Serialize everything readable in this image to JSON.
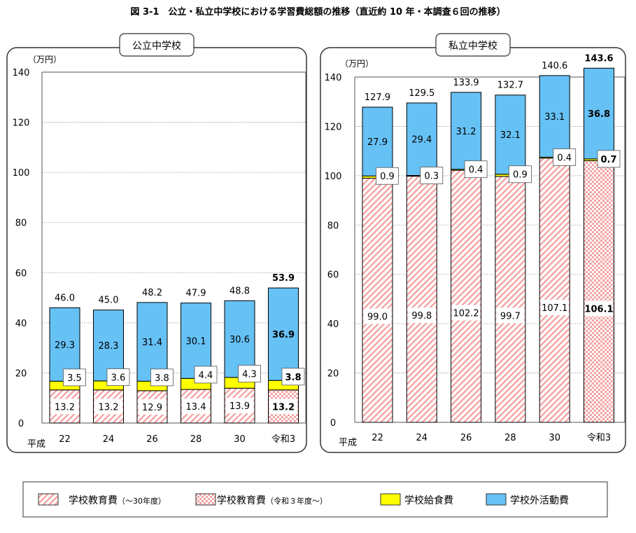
{
  "title": "図 3-1　公立・私立中学校における学習費総額の推移（直近約 10 年・本調査６回の推移）",
  "colors": {
    "school_edu": "#f4a3a3",
    "lunch": "#ffff00",
    "outside": "#66c1f5",
    "panel_border": "#333333",
    "grid": "#999999"
  },
  "legend": {
    "items": [
      {
        "label": "学校教育費",
        "suffix": "（～30年度）",
        "pattern": "diag"
      },
      {
        "label": "学校教育費",
        "suffix": "（令和３年度～）",
        "pattern": "check"
      },
      {
        "label": "学校給食費",
        "suffix": "",
        "pattern": "lunch"
      },
      {
        "label": "学校外活動費",
        "suffix": "",
        "pattern": "outside"
      }
    ]
  },
  "chart_data": [
    {
      "type": "bar",
      "stacked": true,
      "title": "公立中学校",
      "unit": "（万円）",
      "era_label": "平成",
      "categories": [
        "22",
        "24",
        "26",
        "28",
        "30",
        "令和3"
      ],
      "ylim": [
        0,
        140
      ],
      "yticks": [
        0,
        20,
        40,
        60,
        80,
        100,
        120,
        140
      ],
      "grid": true,
      "series": [
        {
          "name": "学校教育費",
          "values": [
            13.2,
            13.2,
            12.9,
            13.4,
            13.9,
            13.2
          ]
        },
        {
          "name": "学校給食費",
          "values": [
            3.5,
            3.6,
            3.8,
            4.4,
            4.3,
            3.8
          ]
        },
        {
          "name": "学校外活動費",
          "values": [
            29.3,
            28.3,
            31.4,
            30.1,
            30.6,
            36.9
          ]
        }
      ],
      "totals": [
        46.0,
        45.0,
        48.2,
        47.9,
        48.8,
        53.9
      ]
    },
    {
      "type": "bar",
      "stacked": true,
      "title": "私立中学校",
      "unit": "（万円）",
      "era_label": "平成",
      "categories": [
        "22",
        "24",
        "26",
        "28",
        "30",
        "令和3"
      ],
      "ylim": [
        0,
        140
      ],
      "yticks": [
        0,
        20,
        40,
        60,
        80,
        100,
        120,
        140
      ],
      "grid": true,
      "series": [
        {
          "name": "学校教育費",
          "values": [
            99.0,
            99.8,
            102.2,
            99.7,
            107.1,
            106.1
          ]
        },
        {
          "name": "学校給食費",
          "values": [
            0.9,
            0.3,
            0.4,
            0.9,
            0.4,
            0.7
          ]
        },
        {
          "name": "学校外活動費",
          "values": [
            27.9,
            29.4,
            31.2,
            32.1,
            33.1,
            36.8
          ]
        }
      ],
      "totals": [
        127.9,
        129.5,
        133.9,
        132.7,
        140.6,
        143.6
      ]
    }
  ]
}
